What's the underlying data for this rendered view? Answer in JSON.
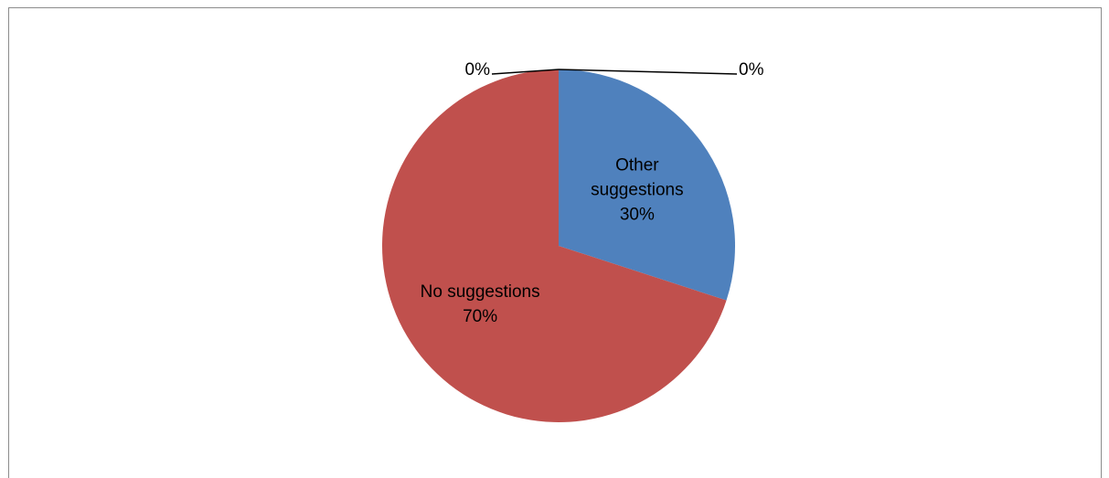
{
  "chart_data": {
    "type": "pie",
    "title": "",
    "start_angle_deg": 0,
    "direction": "clockwise",
    "slices": [
      {
        "label": "Other suggestions",
        "label_lines": [
          "Other",
          "suggestions"
        ],
        "value": 30,
        "percent_label": "30%",
        "color": "#4f81bd",
        "label_position": "inside"
      },
      {
        "label": "No suggestions",
        "label_lines": [
          "No suggestions"
        ],
        "value": 70,
        "percent_label": "70%",
        "color": "#c0504d",
        "label_position": "inside"
      },
      {
        "label": "",
        "label_lines": [],
        "value": 0,
        "percent_label": "0%",
        "color": "#9bbb59",
        "label_position": "outside-left"
      },
      {
        "label": "",
        "label_lines": [],
        "value": 0,
        "percent_label": "0%",
        "color": "#8064a2",
        "label_position": "outside-right"
      }
    ],
    "legend": "none",
    "border_color": "#8c8c8c",
    "leader_line_color": "#000000"
  }
}
